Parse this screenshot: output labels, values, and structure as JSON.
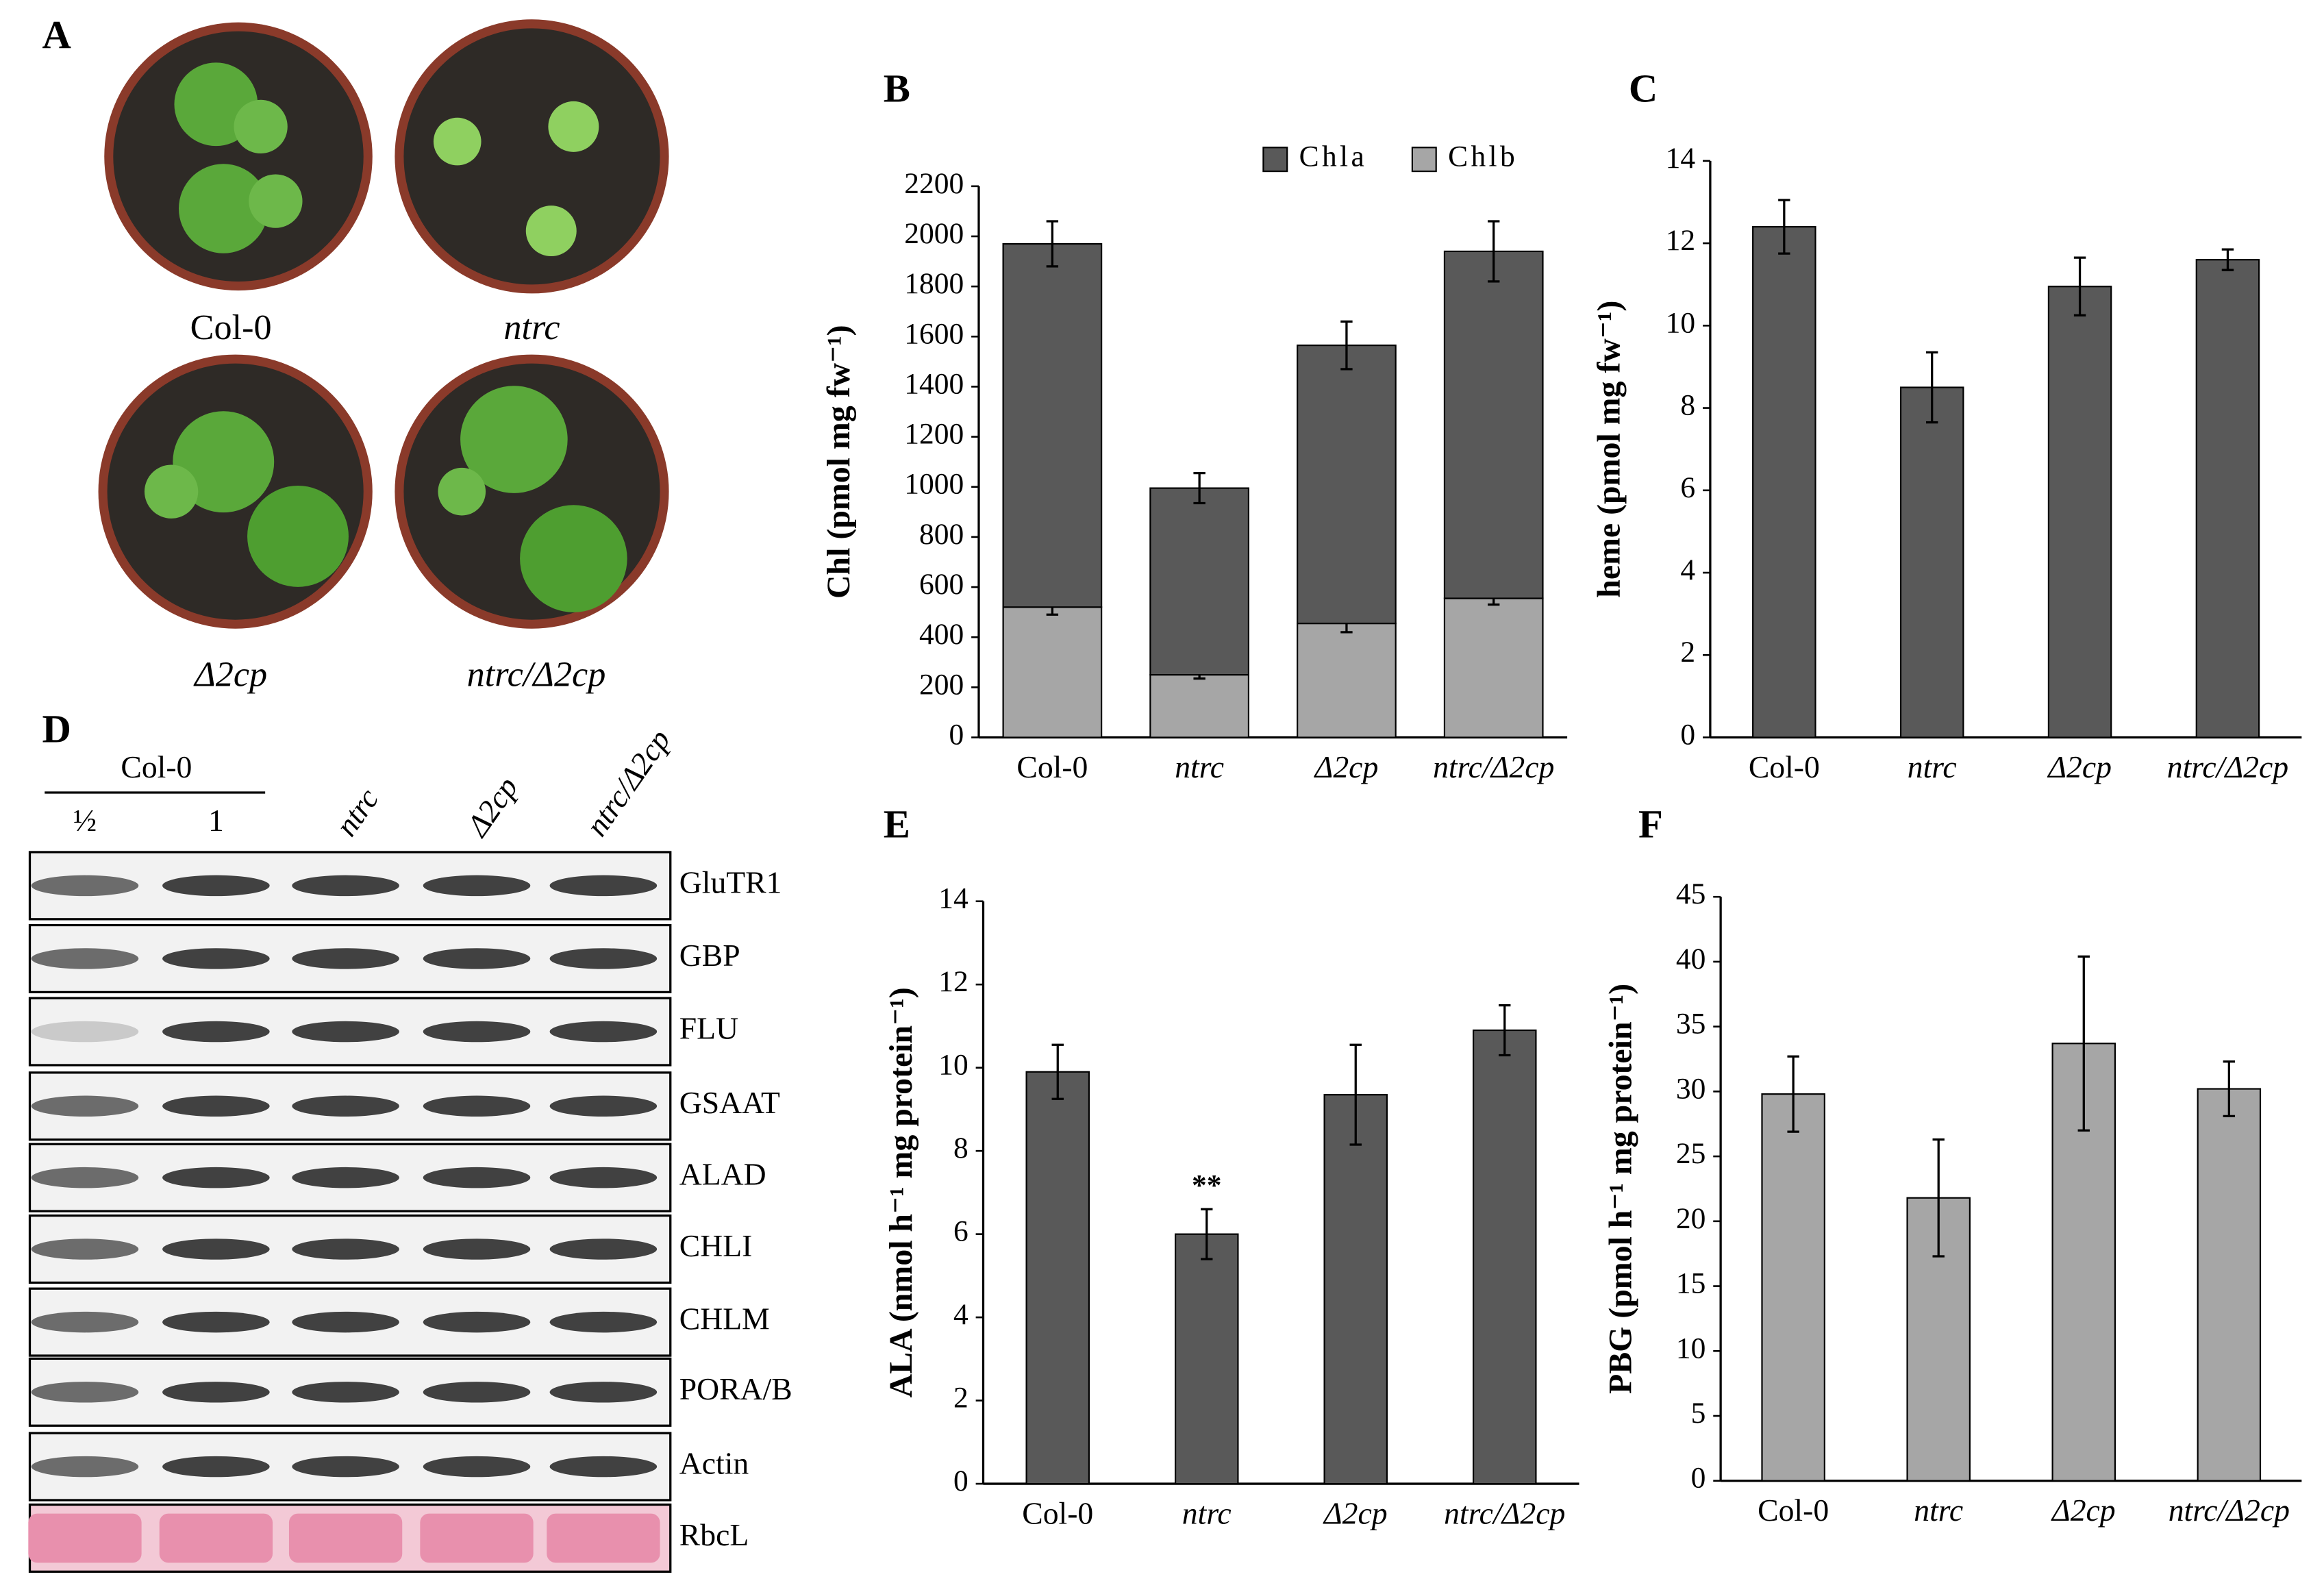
{
  "panel_a": {
    "label": "A",
    "genotypes": [
      "Col-0",
      "ntrc",
      "Δ2cp",
      "ntrc/Δ2cp"
    ]
  },
  "panel_d": {
    "label": "D",
    "group_label": "Col-0",
    "loadings": [
      "½",
      "1"
    ],
    "lanes": [
      "ntrc",
      "Δ2cp",
      "ntrc/Δ2cp"
    ],
    "proteins": [
      "GluTR1",
      "GBP",
      "FLU",
      "GSAAT",
      "ALAD",
      "CHLI",
      "CHLM",
      "PORA/B",
      "Actin",
      "RbcL"
    ]
  },
  "chart_data": [
    {
      "type": "bar",
      "panel": "B",
      "stacked": true,
      "y_label": "Chl (pmol mg fw⁻¹)",
      "categories": [
        "Col-0",
        "ntrc",
        "Δ2cp",
        "ntrc/Δ2cp"
      ],
      "category_style": [
        "normal",
        "italic",
        "italic",
        "italic"
      ],
      "series": [
        {
          "name": "Chlb",
          "color": "#a6a6a6",
          "values": [
            520,
            250,
            455,
            555
          ],
          "errors": [
            30,
            15,
            35,
            25
          ]
        },
        {
          "name": "Chla",
          "color": "#595959",
          "values": [
            1450,
            745,
            1110,
            1385
          ],
          "errors": [
            90,
            60,
            95,
            120
          ]
        }
      ],
      "legend_order": [
        1,
        0
      ],
      "ylim": [
        0,
        2200
      ],
      "yticks": [
        0,
        200,
        400,
        600,
        800,
        1000,
        1200,
        1400,
        1600,
        1800,
        2000,
        2200
      ]
    },
    {
      "type": "bar",
      "panel": "C",
      "y_label": "heme (pmol mg fw⁻¹)",
      "categories": [
        "Col-0",
        "ntrc",
        "Δ2cp",
        "ntrc/Δ2cp"
      ],
      "category_style": [
        "normal",
        "italic",
        "italic",
        "italic"
      ],
      "values": [
        12.4,
        8.5,
        10.95,
        11.6
      ],
      "errors": [
        0.65,
        0.85,
        0.7,
        0.25
      ],
      "color": "#595959",
      "ylim": [
        0,
        14
      ],
      "yticks": [
        0,
        2,
        4,
        6,
        8,
        10,
        12,
        14
      ]
    },
    {
      "type": "bar",
      "panel": "E",
      "y_label": "ALA (nmol h⁻¹ mg protein⁻¹)",
      "categories": [
        "Col-0",
        "ntrc",
        "Δ2cp",
        "ntrc/Δ2cp"
      ],
      "category_style": [
        "normal",
        "italic",
        "italic",
        "italic"
      ],
      "values": [
        9.9,
        6.0,
        9.35,
        10.9
      ],
      "errors": [
        0.65,
        0.6,
        1.2,
        0.6
      ],
      "color": "#595959",
      "significance": [
        null,
        "**",
        null,
        null
      ],
      "ylim": [
        0,
        14
      ],
      "yticks": [
        0,
        2,
        4,
        6,
        8,
        10,
        12,
        14
      ]
    },
    {
      "type": "bar",
      "panel": "F",
      "y_label": "PBG (pmol h⁻¹ mg protein⁻¹)",
      "categories": [
        "Col-0",
        "ntrc",
        "Δ2cp",
        "ntrc/Δ2cp"
      ],
      "category_style": [
        "normal",
        "italic",
        "italic",
        "italic"
      ],
      "values": [
        29.8,
        21.8,
        33.7,
        30.2
      ],
      "errors": [
        2.9,
        4.5,
        6.7,
        2.1
      ],
      "color": "#a6a6a6",
      "ylim": [
        0,
        45
      ],
      "yticks": [
        0,
        5,
        10,
        15,
        20,
        25,
        30,
        35,
        40,
        45
      ]
    }
  ]
}
